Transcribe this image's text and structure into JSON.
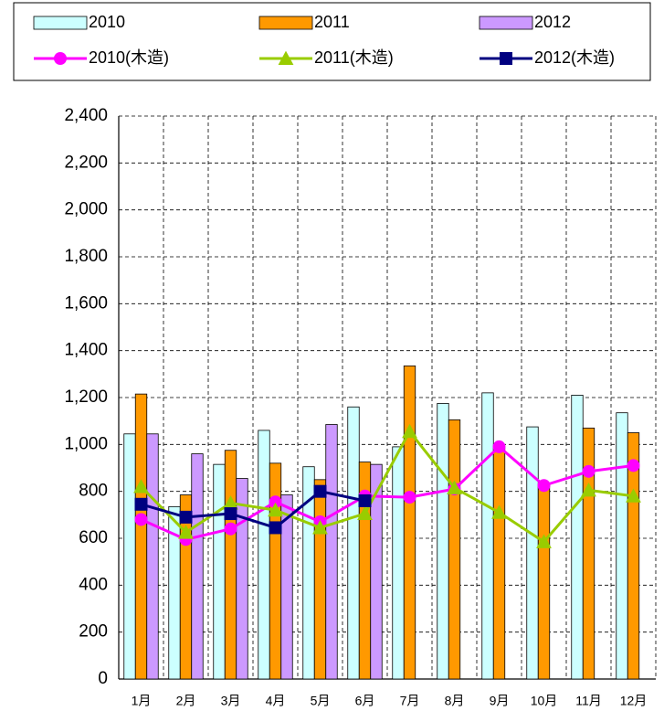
{
  "chart_data": {
    "type": "bar",
    "categories": [
      "1月",
      "2月",
      "3月",
      "4月",
      "5月",
      "6月",
      "7月",
      "8月",
      "9月",
      "10月",
      "11月",
      "12月"
    ],
    "series": [
      {
        "name": "2010",
        "type": "bar",
        "color": "#ccffff",
        "values": [
          1045,
          735,
          915,
          1060,
          905,
          1160,
          990,
          1175,
          1220,
          1075,
          1210,
          1135
        ]
      },
      {
        "name": "2011",
        "type": "bar",
        "color": "#ff9900",
        "values": [
          1215,
          785,
          975,
          920,
          850,
          925,
          1335,
          1105,
          985,
          830,
          1070,
          1050
        ]
      },
      {
        "name": "2012",
        "type": "bar",
        "color": "#cc99ff",
        "values": [
          1045,
          960,
          855,
          785,
          1085,
          915,
          null,
          null,
          null,
          null,
          null,
          null
        ]
      },
      {
        "name": "2010(木造)",
        "type": "line",
        "marker": "circle",
        "color": "#ff00ff",
        "values": [
          680,
          595,
          640,
          755,
          670,
          780,
          775,
          810,
          990,
          825,
          885,
          910
        ]
      },
      {
        "name": "2011(木造)",
        "type": "line",
        "marker": "triangle",
        "color": "#99cc00",
        "values": [
          820,
          625,
          750,
          720,
          645,
          705,
          1055,
          815,
          710,
          585,
          805,
          780
        ]
      },
      {
        "name": "2012(木造)",
        "type": "line",
        "marker": "square",
        "color": "#000080",
        "values": [
          745,
          690,
          705,
          645,
          800,
          760,
          null,
          null,
          null,
          null,
          null,
          null
        ]
      }
    ],
    "ylim": [
      0,
      2400
    ],
    "yticks": [
      0,
      200,
      400,
      600,
      800,
      {
        "value": 1000,
        "label": "1,000"
      },
      {
        "value": 1200,
        "label": "1,200"
      },
      {
        "value": 1400,
        "label": "1,400"
      },
      {
        "value": 1600,
        "label": "1,600"
      },
      {
        "value": 1800,
        "label": "1,800"
      },
      {
        "value": 2000,
        "label": "2,000"
      },
      {
        "value": 2200,
        "label": "2,200"
      },
      {
        "value": 2400,
        "label": "2,400"
      }
    ],
    "grid": true,
    "legend": "top"
  }
}
